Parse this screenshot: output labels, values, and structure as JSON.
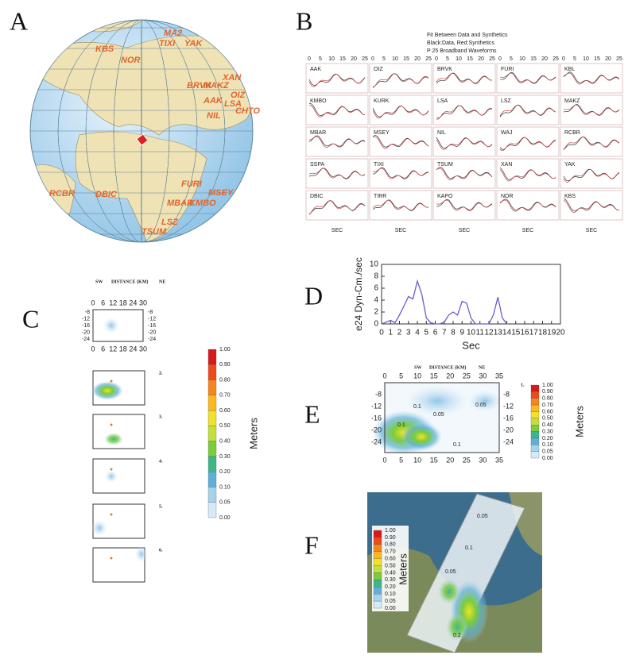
{
  "panels": {
    "a": "A",
    "b": "B",
    "c": "C",
    "d": "D",
    "e": "E",
    "f": "F"
  },
  "globe": {
    "stations": [
      "MA2",
      "TIXI",
      "YAK",
      "KBS",
      "NOR",
      "XAN",
      "BRVK",
      "MAKZ",
      "AAK",
      "OIZ",
      "LSA",
      "CHTO",
      "NIL",
      "FURI",
      "MSEY",
      "RCBR",
      "DBIC",
      "MBAR",
      "KMBO",
      "LSZ",
      "TSUM"
    ]
  },
  "waveforms": {
    "title": [
      "Fit Between Data and Synthetics",
      "Black:Data, Red:Synthetics",
      "P 25 Broadband Waveforms"
    ],
    "xticks": [
      0,
      5,
      10,
      15,
      20,
      25
    ],
    "xlabel": "SEC",
    "stations": [
      "AAK",
      "OIZ",
      "BRVK",
      "FURI",
      "KBL",
      "KMBO",
      "KURK",
      "LSA",
      "LSZ",
      "MAKZ",
      "MBAR",
      "MSEY",
      "NIL",
      "WAJ",
      "RCBR",
      "SSPA",
      "TIXI",
      "TSUM",
      "XAN",
      "YAK",
      "DBIC",
      "TIRR",
      "KAPO",
      "NOR",
      "KBS"
    ]
  },
  "slip_header": {
    "sw": "SW",
    "distance": "DISTANCE (KM)",
    "ne": "NE"
  },
  "slip_c": {
    "xticks": [
      0,
      6,
      12,
      18,
      24,
      30
    ],
    "yticks": [
      -8,
      -12,
      -16,
      -20,
      -24
    ],
    "frames": [
      "2.",
      "3.",
      "4.",
      "5.",
      "6."
    ]
  },
  "colorbar": {
    "label": "Meters",
    "ticks": [
      "1.00",
      "0.90",
      "0.80",
      "0.70",
      "0.60",
      "0.50",
      "0.40",
      "0.30",
      "0.20",
      "0.10",
      "0.05",
      "0.00"
    ],
    "colors": [
      "#d7191c",
      "#ee4a1c",
      "#f7851e",
      "#fbb81f",
      "#f2e12a",
      "#c3e03a",
      "#7ccc3c",
      "#3fb68a",
      "#5fb0d8",
      "#a6d3ec",
      "#d4eaf6",
      "#ffffff"
    ]
  },
  "slip_e": {
    "frame": "1.",
    "xticks": [
      0,
      5,
      10,
      15,
      20,
      25,
      30,
      35
    ],
    "yticks": [
      -8,
      -12,
      -16,
      -20,
      -24
    ],
    "contours": [
      "0.1",
      "0.05",
      "0.05",
      "0.1",
      "0.1"
    ]
  },
  "slip_f": {
    "contours": [
      "0.05",
      "0.1",
      "0.05",
      "0.2"
    ]
  },
  "chart_data": {
    "type": "line",
    "ylabel": "e24 Dyn-Cm./sec",
    "xlabel": "Sec",
    "color": "#6a5acd",
    "x": [
      0,
      0.5,
      1,
      1.5,
      2,
      2.5,
      3,
      3.5,
      4,
      4.5,
      5,
      5.5,
      6,
      6.5,
      7,
      7.5,
      8,
      8.5,
      9,
      9.5,
      10,
      10.5,
      11,
      11.5,
      12,
      12.5,
      13,
      13.5,
      14
    ],
    "values": [
      0,
      0.3,
      0.6,
      0.2,
      1.5,
      3,
      4.6,
      4.2,
      7.2,
      5,
      1,
      0.2,
      0,
      0,
      0.3,
      1.5,
      2,
      1.5,
      3.8,
      3.5,
      1,
      0,
      0,
      0,
      0,
      1.5,
      4.5,
      1,
      0
    ],
    "xlim": [
      0,
      20
    ],
    "ylim": [
      0,
      10
    ],
    "xticks": [
      0,
      1,
      2,
      3,
      4,
      5,
      6,
      7,
      8,
      9,
      10,
      11,
      12,
      13,
      14,
      15,
      16,
      17,
      18,
      19,
      20
    ],
    "yticks": [
      0,
      2,
      4,
      6,
      8,
      10
    ]
  }
}
